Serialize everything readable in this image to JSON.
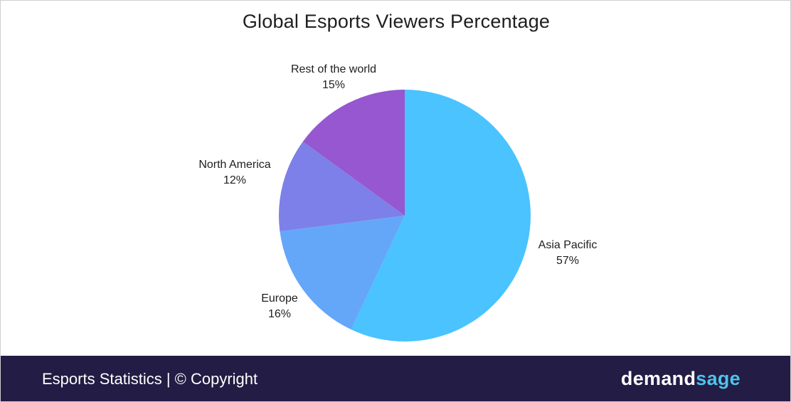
{
  "chart_data": {
    "type": "pie",
    "title": "Global Esports Viewers Percentage",
    "categories": [
      "Asia Pacific",
      "Europe",
      "North America",
      "Rest of the world"
    ],
    "values": [
      57,
      16,
      12,
      15
    ],
    "value_labels": [
      "57%",
      "16%",
      "12%",
      "15%"
    ],
    "colors": [
      "#4ac3ff",
      "#64a7f9",
      "#7c80e8",
      "#9657d0"
    ],
    "start": "top",
    "direction": "clockwise"
  },
  "footer": {
    "source_text": "Esports Statistics | © Copyright",
    "brand_part1": "demand",
    "brand_part2": "sage"
  }
}
